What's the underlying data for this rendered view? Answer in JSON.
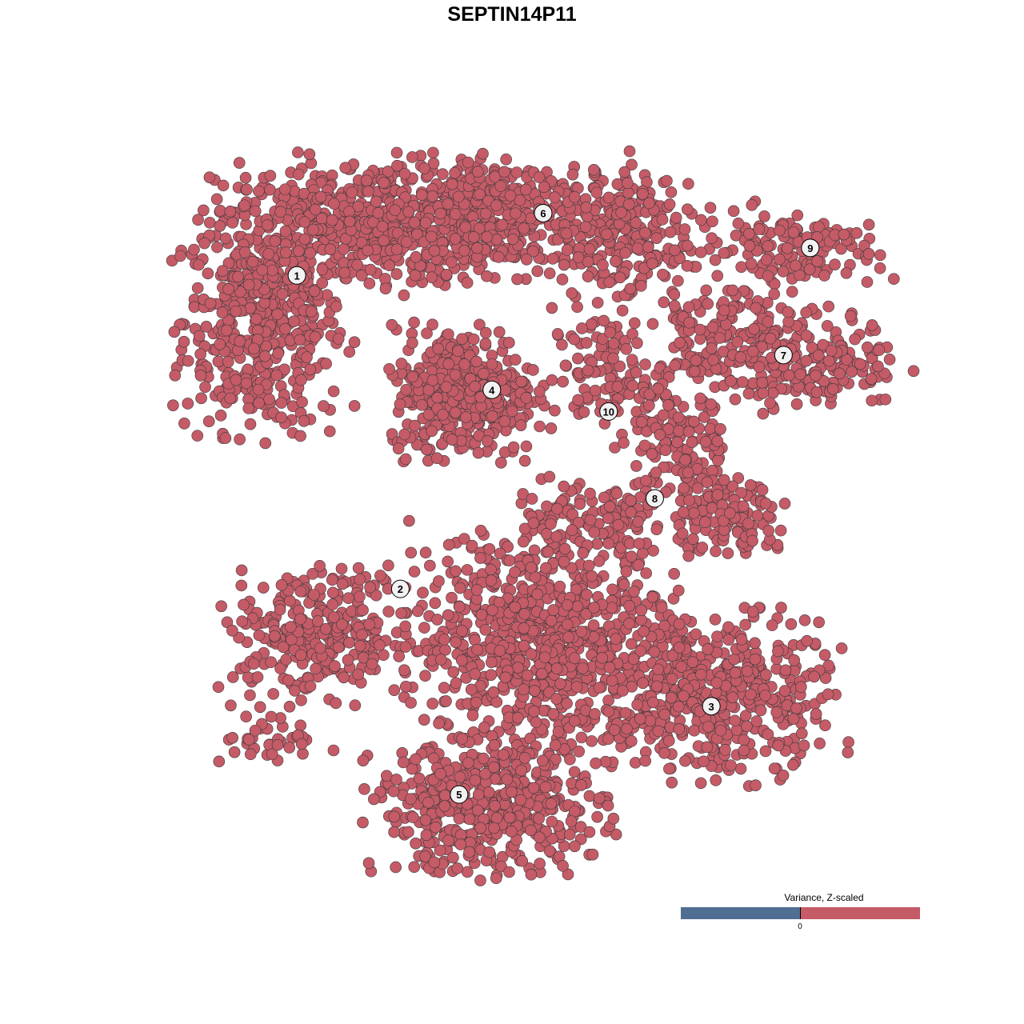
{
  "chart_data": {
    "type": "scatter",
    "title": "SEPTIN14P11",
    "xlabel": "",
    "ylabel": "",
    "axes_visible": false,
    "grid": false,
    "xlim": [
      0,
      100
    ],
    "ylim": [
      0,
      100
    ],
    "point_color": "#C45B67",
    "point_outline": "#3a3a3a",
    "cluster_labels": [
      {
        "label": "1",
        "x": 18.4,
        "y": 82.4
      },
      {
        "label": "2",
        "x": 32.3,
        "y": 39.1
      },
      {
        "label": "3",
        "x": 74.1,
        "y": 22.9
      },
      {
        "label": "4",
        "x": 44.6,
        "y": 66.6
      },
      {
        "label": "5",
        "x": 40.2,
        "y": 10.7
      },
      {
        "label": "6",
        "x": 51.5,
        "y": 91.0
      },
      {
        "label": "7",
        "x": 83.8,
        "y": 71.4
      },
      {
        "label": "8",
        "x": 66.5,
        "y": 51.6
      },
      {
        "label": "9",
        "x": 87.4,
        "y": 86.2
      },
      {
        "label": "10",
        "x": 60.3,
        "y": 63.6
      }
    ],
    "point_regions": [
      {
        "cluster": "1",
        "cx": 14.0,
        "cy": 76.2,
        "sx": 5.4,
        "sy": 7.7,
        "n": 500
      },
      {
        "cluster": "1",
        "cx": 26.9,
        "cy": 89.5,
        "sx": 9.7,
        "sy": 4.4,
        "n": 500
      },
      {
        "cluster": "6",
        "cx": 47.3,
        "cy": 90.6,
        "sx": 9.7,
        "sy": 3.9,
        "n": 450
      },
      {
        "cluster": "6",
        "cx": 62.4,
        "cy": 86.2,
        "sx": 4.3,
        "sy": 4.4,
        "n": 150
      },
      {
        "cluster": "4",
        "cx": 40.9,
        "cy": 66.3,
        "sx": 4.8,
        "sy": 4.4,
        "n": 400
      },
      {
        "cluster": "10",
        "cx": 60.2,
        "cy": 68.5,
        "sx": 3.8,
        "sy": 4.4,
        "n": 120
      },
      {
        "cluster": "9",
        "cx": 83.9,
        "cy": 86.2,
        "sx": 6.5,
        "sy": 2.8,
        "n": 150
      },
      {
        "cluster": "7",
        "cx": 84.9,
        "cy": 70.7,
        "sx": 7.5,
        "sy": 3.3,
        "n": 250
      },
      {
        "cluster": "7",
        "cx": 75.3,
        "cy": 76.2,
        "sx": 4.3,
        "sy": 2.8,
        "n": 80
      },
      {
        "cluster": "8",
        "cx": 69.9,
        "cy": 58.6,
        "sx": 3.2,
        "sy": 5.5,
        "n": 150
      },
      {
        "cluster": "8",
        "cx": 77.4,
        "cy": 48.6,
        "sx": 3.8,
        "sy": 2.8,
        "n": 120
      },
      {
        "cluster": "8",
        "cx": 58.1,
        "cy": 48.6,
        "sx": 5.4,
        "sy": 2.8,
        "n": 100
      },
      {
        "cluster": "2",
        "cx": 21.5,
        "cy": 33.1,
        "sx": 6.5,
        "sy": 4.4,
        "n": 300
      },
      {
        "cluster": "2",
        "cx": 15.1,
        "cy": 18.8,
        "sx": 3.2,
        "sy": 2.2,
        "n": 40
      },
      {
        "cluster": "3",
        "cx": 75.3,
        "cy": 24.3,
        "sx": 7.5,
        "sy": 5.5,
        "n": 450
      },
      {
        "cluster": "5",
        "cx": 51.6,
        "cy": 32.0,
        "sx": 8.6,
        "sy": 7.7,
        "n": 800
      },
      {
        "cluster": "5",
        "cx": 44.1,
        "cy": 8.8,
        "sx": 7.5,
        "sy": 4.4,
        "n": 500
      }
    ],
    "legend": {
      "title": "Variance, Z-scaled",
      "tick": "0",
      "low_color": "#506E91",
      "high_color": "#C45B67",
      "placement": "bottom-right"
    }
  }
}
